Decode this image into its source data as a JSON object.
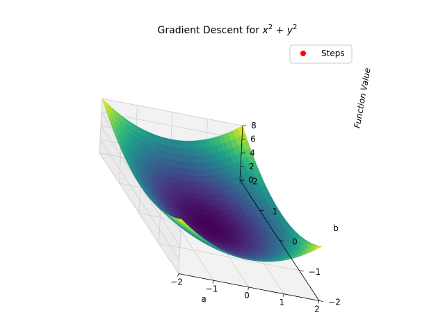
{
  "chart_data": {
    "type": "surface3d",
    "title": "Gradient Descent for x² + y²",
    "title_parts": {
      "prefix": "Gradient Descent for ",
      "t1": "x",
      "e1": "2",
      "plus": " + ",
      "t2": "y",
      "e2": "2"
    },
    "function": "a^2 + b^2",
    "xlabel": "a",
    "ylabel": "b",
    "zlabel": "Function Value",
    "xlim": [
      -2,
      2
    ],
    "ylim": [
      -2,
      2
    ],
    "zlim": [
      0,
      8
    ],
    "xticks": [
      "−2",
      "−1",
      "0",
      "1",
      "2"
    ],
    "yticks": [
      "−2",
      "−1",
      "0",
      "1",
      "2"
    ],
    "zticks": [
      "0",
      "2",
      "4",
      "6",
      "8"
    ],
    "colormap": "viridis",
    "grid": true,
    "legend": {
      "placement": "top-right",
      "entries": [
        {
          "label": "Steps",
          "color": "#ff0000"
        }
      ]
    },
    "steps": []
  }
}
